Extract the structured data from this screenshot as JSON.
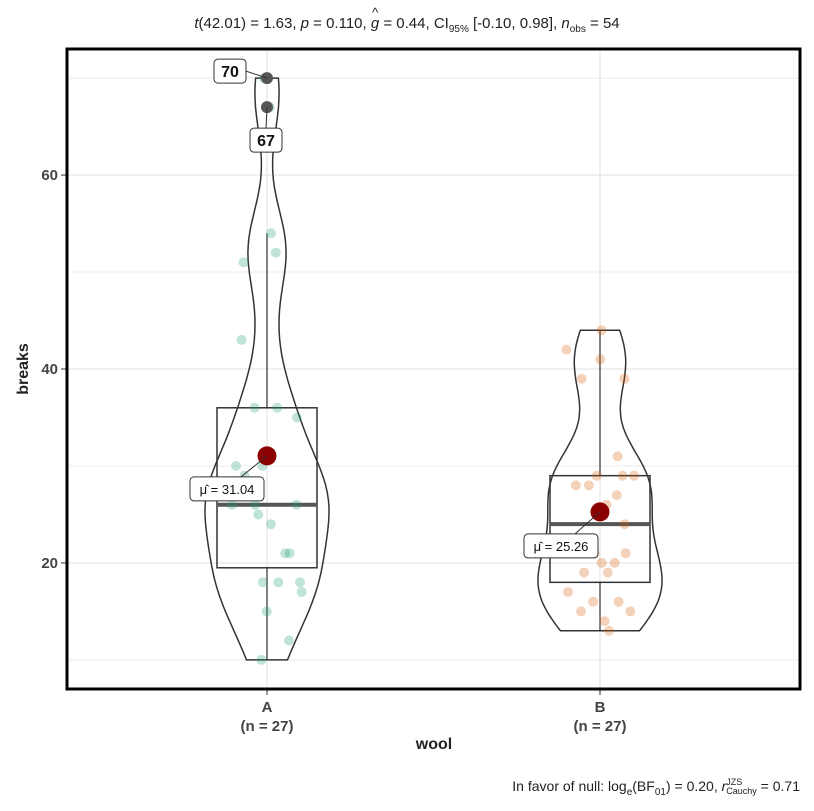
{
  "subtitle": {
    "stat_label": "t",
    "stat_rest": "(42.01) = 1.63, ",
    "p_label": "p",
    "p_rest": " = 0.110, ",
    "g_label": "g",
    "g_rest": " = 0.44, CI",
    "ci_sub": "95%",
    "ci_rest": " [-0.10, 0.98], ",
    "n_label": "n",
    "n_sub": "obs",
    "n_rest": " = 54"
  },
  "caption": {
    "prefix": "In favor of null: log",
    "log_sub": "e",
    "mid1": "(BF",
    "bf_sub": "01",
    "mid2": ") = 0.20, ",
    "r_label": "r",
    "r_sup": "JZS",
    "r_sub": "Cauchy",
    "suffix": " = 0.71"
  },
  "colors": {
    "group_A": "#1B9E77",
    "group_B": "#D95F02",
    "mean_point": "#8B0000",
    "outlier": "#555555",
    "panel_border": "#000000",
    "grid": "#e6e6e6"
  },
  "chart_data": {
    "type": "box-violin",
    "xlabel": "wool",
    "ylabel": "breaks",
    "ylim": [
      7,
      73
    ],
    "y_ticks": [
      20,
      40,
      60
    ],
    "grid": true,
    "categories": [
      "A",
      "B"
    ],
    "category_counts": [
      "(n = 27)",
      "(n = 27)"
    ],
    "groups": [
      {
        "name": "A",
        "color": "#1B9E77",
        "points": [
          26,
          30,
          54,
          25,
          70,
          52,
          51,
          26,
          67,
          18,
          21,
          29,
          17,
          12,
          18,
          35,
          30,
          36,
          36,
          21,
          24,
          18,
          10,
          43,
          28,
          15,
          26
        ],
        "box": {
          "q1": 19.5,
          "median": 26,
          "q3": 36,
          "whisker_low": 10,
          "whisker_high": 54
        },
        "violin_range": [
          10,
          70
        ],
        "mean": 31.04,
        "mean_label": "μ̂ = 31.04",
        "outliers": [
          {
            "value": 70,
            "label": "70"
          },
          {
            "value": 67,
            "label": "67"
          }
        ]
      },
      {
        "name": "B",
        "color": "#D95F02",
        "points": [
          27,
          14,
          29,
          19,
          29,
          31,
          41,
          20,
          44,
          42,
          26,
          19,
          16,
          39,
          28,
          21,
          39,
          29,
          20,
          21,
          24,
          17,
          13,
          15,
          15,
          16,
          28
        ],
        "box": {
          "q1": 18,
          "median": 24,
          "q3": 29,
          "whisker_low": 13,
          "whisker_high": 44
        },
        "violin_range": [
          13,
          44
        ],
        "mean": 25.26,
        "mean_label": "μ̂ = 25.26",
        "outliers": []
      }
    ]
  }
}
